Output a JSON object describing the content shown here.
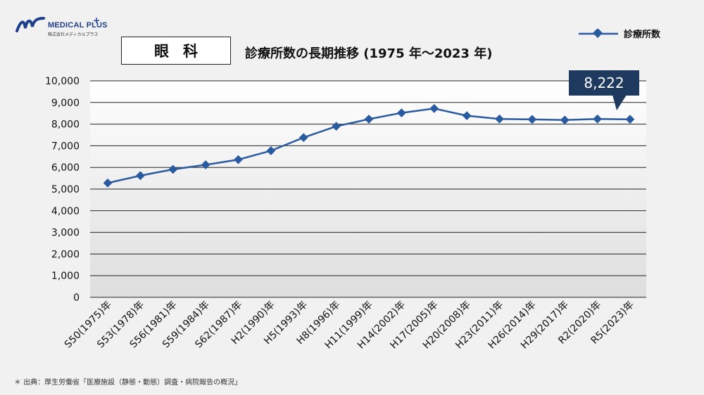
{
  "logo": {
    "brand": "MEDICAL PLUS",
    "plus": "+",
    "sub": "株式会社メディカルプラス"
  },
  "subject": "眼科",
  "colors": {
    "line": "#2a5aa0",
    "marker": "#2a5aa0",
    "callout_bg": "#1f3a5f",
    "grid": "#222222"
  },
  "callout": {
    "value": "8,222"
  },
  "source": "＊ 出典：厚生労働省「医療施設（静態・動態）調査・病院報告の概況」",
  "chart_data": {
    "type": "line",
    "title": "診療所数の長期推移 (1975 年～2023 年)",
    "categories": [
      "S50(1975)年",
      "S53(1978)年",
      "S56(1981)年",
      "S59(1984)年",
      "S62(1987)年",
      "H2(1990)年",
      "H5(1993)年",
      "H8(1996)年",
      "H11(1999)年",
      "H14(2002)年",
      "H17(2005)年",
      "H20(2008)年",
      "H23(2011)年",
      "H26(2014)年",
      "H29(2017)年",
      "R2(2020)年",
      "R5(2023)年"
    ],
    "series": [
      {
        "name": "診療所数",
        "values": [
          5280,
          5620,
          5910,
          6120,
          6360,
          6770,
          7380,
          7900,
          8230,
          8520,
          8720,
          8390,
          8240,
          8220,
          8190,
          8240,
          8222
        ]
      }
    ],
    "ylim": [
      0,
      10000
    ],
    "yticks": [
      "0",
      "1,000",
      "2,000",
      "3,000",
      "4,000",
      "5,000",
      "6,000",
      "7,000",
      "8,000",
      "9,000",
      "10,000"
    ],
    "grid": true,
    "legend_position": "top-right",
    "xlabel": "",
    "ylabel": ""
  }
}
